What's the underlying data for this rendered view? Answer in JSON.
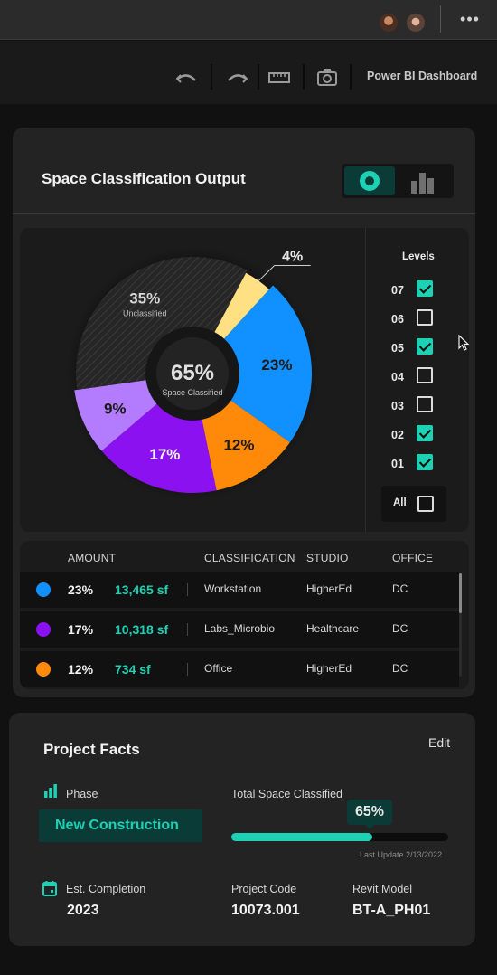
{
  "toolbar": {
    "title": "Power BI Dashboard",
    "icons": [
      "undo-icon",
      "redo-icon",
      "ruler-icon",
      "camera-icon"
    ]
  },
  "space_card": {
    "title": "Space Classification Output",
    "view_toggle": [
      "donut-view",
      "bar-view"
    ],
    "center_value": "65%",
    "center_label": "Space Classified",
    "levels_title": "Levels",
    "levels": [
      {
        "label": "07",
        "checked": true
      },
      {
        "label": "06",
        "checked": false
      },
      {
        "label": "05",
        "checked": true
      },
      {
        "label": "04",
        "checked": false
      },
      {
        "label": "03",
        "checked": false
      },
      {
        "label": "02",
        "checked": true
      },
      {
        "label": "01",
        "checked": true
      }
    ],
    "all_label": "All",
    "all_checked": false
  },
  "chart_data": {
    "type": "pie",
    "center_value": "65%",
    "center_label": "Space Classified",
    "slices": [
      {
        "label": "4%",
        "value": 4,
        "color": "#ffe082"
      },
      {
        "label": "23%",
        "value": 23,
        "color": "#1190ff"
      },
      {
        "label": "12%",
        "value": 12,
        "color": "#ff8a0a"
      },
      {
        "label": "17%",
        "value": 17,
        "color": "#8c11f0"
      },
      {
        "label": "9%",
        "value": 9,
        "color": "#b37cff"
      },
      {
        "label": "35%",
        "sublabel": "Unclassified",
        "value": 35,
        "color": "#2a2a2a"
      }
    ]
  },
  "table": {
    "headers": [
      "AMOUNT",
      "CLASSIFICATION",
      "STUDIO",
      "OFFICE"
    ],
    "rows": [
      {
        "color": "#1190ff",
        "pct": "23%",
        "sf": "13,465 sf",
        "classification": "Workstation",
        "studio": "HigherEd",
        "office": "DC"
      },
      {
        "color": "#8c11f0",
        "pct": "17%",
        "sf": "10,318  sf",
        "classification": "Labs_Microbio",
        "studio": "Healthcare",
        "office": "DC"
      },
      {
        "color": "#ff8a0a",
        "pct": "12%",
        "sf": "734 sf",
        "classification": "Office",
        "studio": "HigherEd",
        "office": "DC"
      }
    ]
  },
  "project_facts": {
    "title": "Project Facts",
    "edit_label": "Edit",
    "phase_label": "Phase",
    "phase_value": "New Construction",
    "total_label": "Total Space Classified",
    "total_value": "65%",
    "total_fraction": 0.65,
    "last_update": "Last Update 2/13/2022",
    "completion_label": "Est. Completion",
    "completion_value": "2023",
    "code_label": "Project Code",
    "code_value": "10073.001",
    "model_label": "Revit Model",
    "model_value": "BT-A_PH01"
  },
  "colors": {
    "accent": "#1dd1b4",
    "accent_dark": "#0b3b36",
    "background": "#111111",
    "card": "#232323"
  }
}
